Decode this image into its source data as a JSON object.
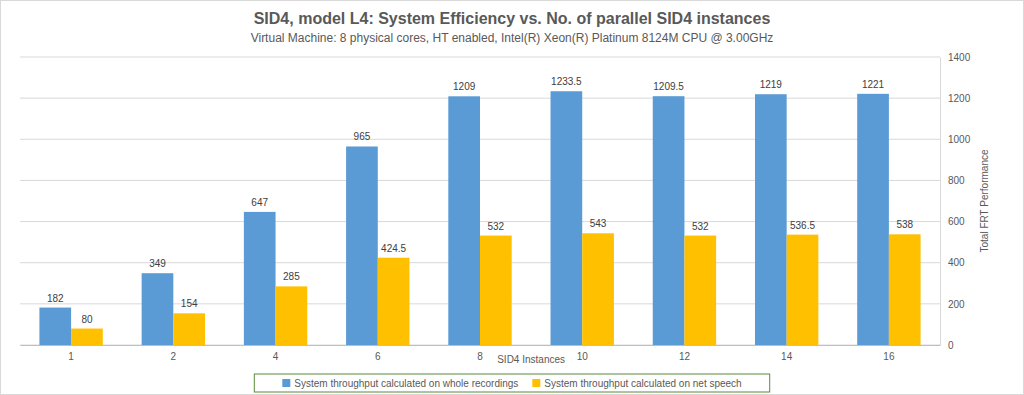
{
  "chart_data": {
    "type": "bar",
    "title": "SID4, model L4: System Efficiency vs. No. of parallel SID4 instances",
    "subtitle": "Virtual Machine: 8 physical cores, HT enabled, Intel(R) Xeon(R) Platinum 8124M CPU @ 3.00GHz",
    "x_label": "SID4 Instances",
    "y_label": "Total FRT Performance",
    "categories": [
      "1",
      "2",
      "4",
      "6",
      "8",
      "10",
      "12",
      "14",
      "16"
    ],
    "series": [
      {
        "name": "System throughput calculated on whole recordings",
        "color": "#5b9bd5",
        "values": [
          182,
          349,
          647,
          965,
          1209,
          1233.5,
          1209.5,
          1219,
          1221
        ]
      },
      {
        "name": "System throughput calculated on net speech",
        "color": "#ffc000",
        "values": [
          80,
          154,
          285,
          424.5,
          532,
          543,
          532,
          536.5,
          538
        ]
      }
    ],
    "ylim": [
      0,
      1400
    ],
    "yticks": [
      0,
      200,
      400,
      600,
      800,
      1000,
      1200,
      1400
    ],
    "grid": true,
    "legend": "bottom",
    "data_labels": true
  }
}
